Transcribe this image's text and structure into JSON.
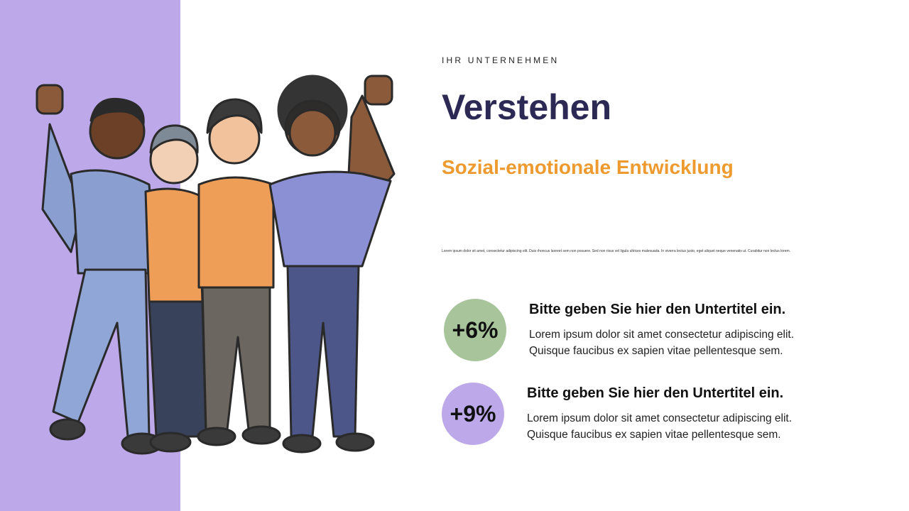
{
  "header": {
    "eyebrow": "IHR UNTERNEHMEN",
    "title": "Verstehen",
    "subtitle": "Sozial-emotionale Entwicklung",
    "small_text": "Lorem ipsum dolor sit amet, consectetur adipiscing elit. Duis rhoncus laoreet sem non posuere. Sed non risus vel ligula ultrices malesuada. In viverra lectus justo, eget aliquet neque venenatis ut. Curabitur non lectus lorem."
  },
  "stats": [
    {
      "value": "+6%",
      "heading": "Bitte geben Sie hier den Untertitel ein.",
      "line1": "Lorem ipsum dolor sit amet consectetur adipiscing elit.",
      "line2": "Quisque faucibus ex sapien vitae pellentesque sem.",
      "color": "#a7c49a"
    },
    {
      "value": "+9%",
      "heading": "Bitte geben Sie hier den Untertitel ein.",
      "line1": "Lorem ipsum dolor sit amet consectetur adipiscing elit.",
      "line2": "Quisque faucibus ex sapien vitae pellentesque sem.",
      "color": "#bda9ea"
    }
  ],
  "colors": {
    "band": "#bda9ea",
    "title": "#2c2a55",
    "accent": "#ee9a2f"
  },
  "illustration": "four-friends-cheering-illustration"
}
